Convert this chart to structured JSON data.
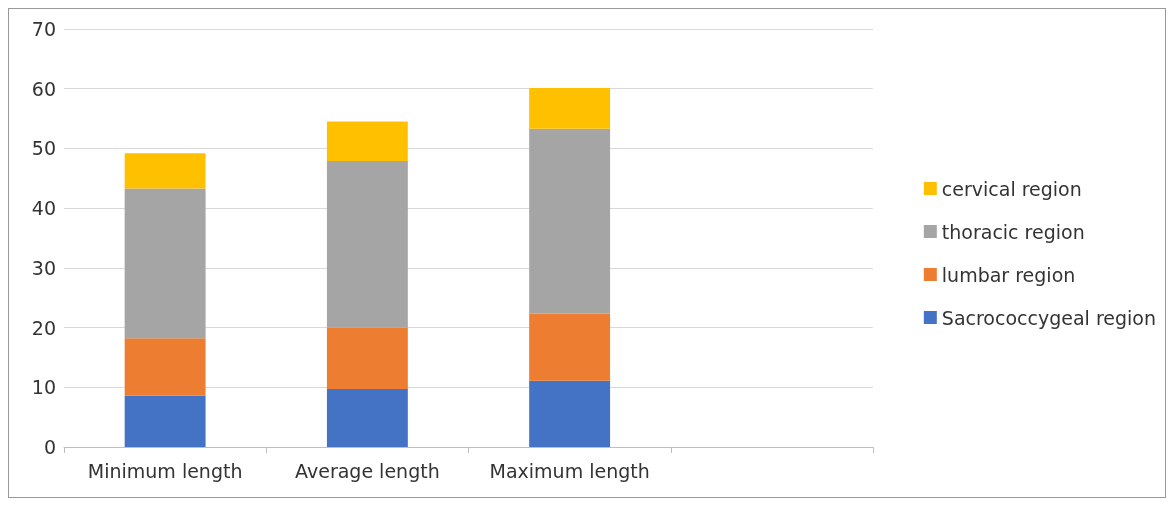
{
  "chart_data": {
    "type": "bar",
    "stacked": true,
    "categories": [
      "Minimum length",
      "Average length",
      "Maximum length",
      null
    ],
    "series": [
      {
        "name": "Sacrococcygeal region",
        "color": "#4472c4",
        "values": [
          8.6,
          9.7,
          11.1,
          null
        ]
      },
      {
        "name": "lumbar region",
        "color": "#ed7d31",
        "values": [
          9.6,
          10.3,
          11.2,
          null
        ]
      },
      {
        "name": "thoracic region",
        "color": "#a5a5a5",
        "values": [
          25.1,
          27.9,
          31.0,
          null
        ]
      },
      {
        "name": "cervical region",
        "color": "#ffc000",
        "values": [
          5.9,
          6.6,
          6.8,
          null
        ]
      }
    ],
    "ylim": [
      0,
      70
    ],
    "yticks": [
      0,
      10,
      20,
      30,
      40,
      50,
      60,
      70
    ],
    "grid": "y",
    "legend": "right"
  }
}
